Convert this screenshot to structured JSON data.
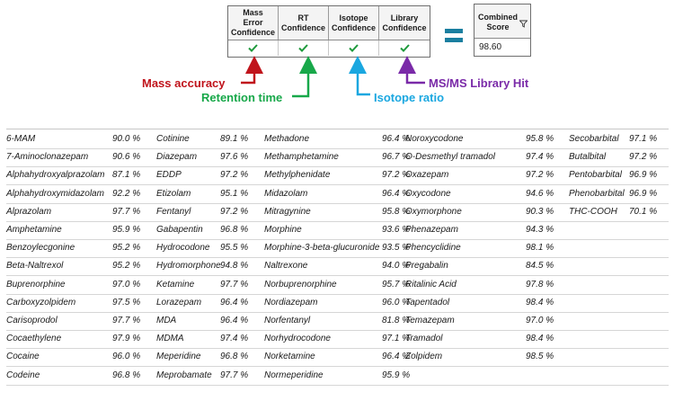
{
  "confidence_headers": [
    {
      "label": "Mass\nError Confidence"
    },
    {
      "label": "RT\nConfidence"
    },
    {
      "label": "Isotope\nConfidence"
    },
    {
      "label": "Library\nConfidence"
    }
  ],
  "check_icon": "check-icon",
  "combined": {
    "label": "Combined\nScore",
    "value": "98.60",
    "filter_icon": "filter-icon"
  },
  "annotations": {
    "mass_accuracy": {
      "label": "Mass accuracy",
      "color": "#c0141c"
    },
    "retention_time": {
      "label": "Retention time",
      "color": "#18a84a"
    },
    "isotope_ratio": {
      "label": "Isotope ratio",
      "color": "#1aa7e0"
    },
    "library_hit": {
      "label": "MS/MS Library Hit",
      "color": "#7a2aa8"
    }
  },
  "colors": {
    "check": "#1e9a3c",
    "equals": "#1a7fa0"
  },
  "table": {
    "rows": [
      [
        [
          "6-MAM",
          "90.0 %"
        ],
        [
          "Cotinine",
          "89.1 %"
        ],
        [
          "Methadone",
          "96.4 %"
        ],
        [
          "Noroxycodone",
          "95.8 %"
        ],
        [
          "Secobarbital",
          "97.1 %"
        ]
      ],
      [
        [
          "7-Aminoclonazepam",
          "90.6 %"
        ],
        [
          "Diazepam",
          "97.6 %"
        ],
        [
          "Methamphetamine",
          "96.7 %"
        ],
        [
          "O-Desmethyl tramadol",
          "97.4 %"
        ],
        [
          "Butalbital",
          "97.2 %"
        ]
      ],
      [
        [
          "Alphahydroxyalprazolam",
          "87.1 %"
        ],
        [
          "EDDP",
          "97.2 %"
        ],
        [
          "Methylphenidate",
          "97.2 %"
        ],
        [
          "Oxazepam",
          "97.2 %"
        ],
        [
          "Pentobarbital",
          "96.9 %"
        ]
      ],
      [
        [
          "Alphahydroxymidazolam",
          "92.2 %"
        ],
        [
          "Etizolam",
          "95.1 %"
        ],
        [
          "Midazolam",
          "96.4 %"
        ],
        [
          "Oxycodone",
          "94.6 %"
        ],
        [
          "Phenobarbital",
          "96.9 %"
        ]
      ],
      [
        [
          "Alprazolam",
          "97.7 %"
        ],
        [
          "Fentanyl",
          "97.2 %"
        ],
        [
          "Mitragynine",
          "95.8 %"
        ],
        [
          "Oxymorphone",
          "90.3 %"
        ],
        [
          "THC-COOH",
          "70.1 %"
        ]
      ],
      [
        [
          "Amphetamine",
          "95.9 %"
        ],
        [
          "Gabapentin",
          "96.8 %"
        ],
        [
          "Morphine",
          "93.6 %"
        ],
        [
          "Phenazepam",
          "94.3 %"
        ],
        [
          "",
          ""
        ]
      ],
      [
        [
          "Benzoylecgonine",
          "95.2 %"
        ],
        [
          "Hydrocodone",
          "95.5 %"
        ],
        [
          "Morphine-3-beta-glucuronide",
          "93.5 %"
        ],
        [
          "Phencyclidine",
          "98.1 %"
        ],
        [
          "",
          ""
        ]
      ],
      [
        [
          "Beta-Naltrexol",
          "95.2 %"
        ],
        [
          "Hydromorphone",
          "94.8 %"
        ],
        [
          "Naltrexone",
          "94.0 %"
        ],
        [
          "Pregabalin",
          "84.5 %"
        ],
        [
          "",
          ""
        ]
      ],
      [
        [
          "Buprenorphine",
          "97.0 %"
        ],
        [
          "Ketamine",
          "97.7 %"
        ],
        [
          "Norbuprenorphine",
          "95.7 %"
        ],
        [
          "Ritalinic Acid",
          "97.8 %"
        ],
        [
          "",
          ""
        ]
      ],
      [
        [
          "Carboxyzolpidem",
          "97.5 %"
        ],
        [
          "Lorazepam",
          "96.4 %"
        ],
        [
          "Nordiazepam",
          "96.0 %"
        ],
        [
          "Tapentadol",
          "98.4 %"
        ],
        [
          "",
          ""
        ]
      ],
      [
        [
          "Carisoprodol",
          "97.7 %"
        ],
        [
          "MDA",
          "96.4 %"
        ],
        [
          "Norfentanyl",
          "81.8 %"
        ],
        [
          "Temazepam",
          "97.0 %"
        ],
        [
          "",
          ""
        ]
      ],
      [
        [
          "Cocaethylene",
          "97.9 %"
        ],
        [
          "MDMA",
          "97.4 %"
        ],
        [
          "Norhydrocodone",
          "97.1 %"
        ],
        [
          "Tramadol",
          "98.4 %"
        ],
        [
          "",
          ""
        ]
      ],
      [
        [
          "Cocaine",
          "96.0 %"
        ],
        [
          "Meperidine",
          "96.8 %"
        ],
        [
          "Norketamine",
          "96.4 %"
        ],
        [
          "Zolpidem",
          "98.5 %"
        ],
        [
          "",
          ""
        ]
      ],
      [
        [
          "Codeine",
          "96.8 %"
        ],
        [
          "Meprobamate",
          "97.7 %"
        ],
        [
          "Normeperidine",
          "95.9 %"
        ],
        [
          "",
          ""
        ],
        [
          "",
          ""
        ]
      ]
    ]
  }
}
